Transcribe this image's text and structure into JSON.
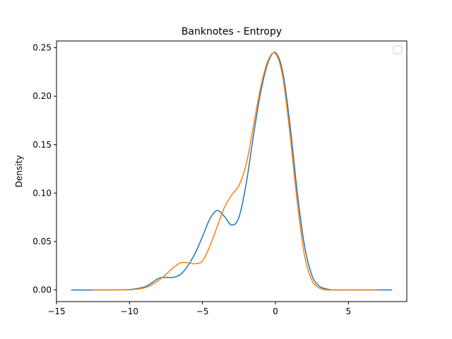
{
  "chart_data": {
    "type": "line",
    "title": "Banknotes - Entropy",
    "xlabel": "",
    "ylabel": "Density",
    "xlim": [
      -15,
      9
    ],
    "ylim": [
      -0.012,
      0.257
    ],
    "xticks": [
      -15,
      -10,
      -5,
      0,
      5
    ],
    "yticks": [
      0.0,
      0.05,
      0.1,
      0.15,
      0.2,
      0.25
    ],
    "xtick_labels": [
      "−15",
      "−10",
      "−5",
      "0",
      "5"
    ],
    "ytick_labels": [
      "0.00",
      "0.05",
      "0.10",
      "0.15",
      "0.20",
      "0.25"
    ],
    "grid": false,
    "legend": {
      "placement": "top-right",
      "entries": []
    },
    "series": [
      {
        "color": "#1f77b4",
        "x": [
          -14.0,
          -12.0,
          -10.0,
          -9.0,
          -8.5,
          -8.0,
          -7.5,
          -7.0,
          -6.5,
          -6.0,
          -5.5,
          -5.0,
          -4.5,
          -4.0,
          -3.5,
          -3.0,
          -2.5,
          -2.0,
          -1.5,
          -1.0,
          -0.5,
          0.0,
          0.5,
          1.0,
          1.5,
          2.0,
          2.5,
          3.0,
          3.5,
          4.0,
          5.0,
          6.0,
          8.0
        ],
        "y": [
          0.0,
          0.0,
          0.0005,
          0.003,
          0.007,
          0.012,
          0.013,
          0.013,
          0.016,
          0.025,
          0.038,
          0.055,
          0.073,
          0.082,
          0.076,
          0.067,
          0.075,
          0.11,
          0.16,
          0.205,
          0.235,
          0.245,
          0.225,
          0.17,
          0.1,
          0.045,
          0.015,
          0.004,
          0.001,
          0.0,
          0.0,
          0.0,
          0.0
        ]
      },
      {
        "color": "#ff7f0e",
        "x": [
          -12.5,
          -10.0,
          -9.0,
          -8.5,
          -8.0,
          -7.5,
          -7.0,
          -6.5,
          -6.0,
          -5.5,
          -5.0,
          -4.5,
          -4.0,
          -3.5,
          -3.0,
          -2.5,
          -2.0,
          -1.5,
          -1.0,
          -0.5,
          0.0,
          0.5,
          1.0,
          1.5,
          2.0,
          2.5,
          3.0,
          3.5,
          4.0,
          5.0,
          7.0
        ],
        "y": [
          0.0,
          0.0002,
          0.002,
          0.005,
          0.01,
          0.016,
          0.023,
          0.028,
          0.028,
          0.027,
          0.03,
          0.045,
          0.065,
          0.085,
          0.098,
          0.108,
          0.13,
          0.17,
          0.21,
          0.237,
          0.244,
          0.22,
          0.16,
          0.09,
          0.035,
          0.01,
          0.002,
          0.0,
          0.0,
          0.0,
          0.0
        ]
      }
    ]
  }
}
